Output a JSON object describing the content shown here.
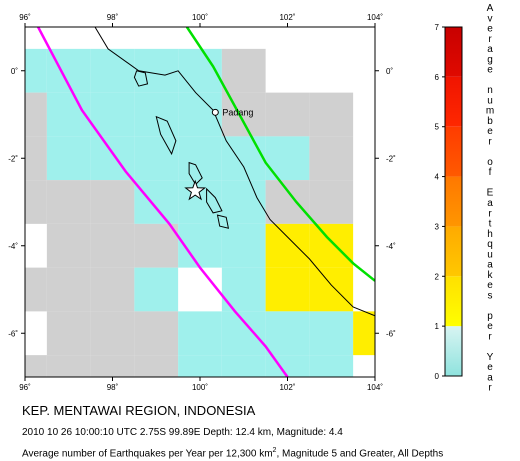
{
  "map": {
    "region_title": "KEP. MENTAWAI REGION, INDONESIA",
    "event_line": "2010 10 26 10:00:10 UTC 2.75S 99.89E Depth: 12.4 km, Magnitude: 4.4",
    "caption": {
      "prefix": "Average number of Earthquakes per Year per 12,300 km",
      "superscript": "2",
      "suffix": ", Magnitude 5 and Greater, All Depths"
    },
    "extent": {
      "lon_min": 96,
      "lon_max": 104,
      "lat_min": -7,
      "lat_max": 1
    },
    "lon_ticks": [
      {
        "value": 96,
        "label": "96˚"
      },
      {
        "value": 98,
        "label": "98˚"
      },
      {
        "value": 100,
        "label": "100˚"
      },
      {
        "value": 102,
        "label": "102˚"
      },
      {
        "value": 104,
        "label": "104˚"
      }
    ],
    "lat_ticks": [
      {
        "value": 0,
        "label": "0˚"
      },
      {
        "value": -2,
        "label": "-2˚"
      },
      {
        "value": -4,
        "label": "-4˚"
      },
      {
        "value": -6,
        "label": "-6˚"
      }
    ],
    "city": {
      "name": "Padang",
      "lon": 100.35,
      "lat": -0.95
    },
    "epicenter": {
      "lon": 99.89,
      "lat": -2.75
    },
    "colors": {
      "nodata": "#d0d0d0",
      "low": "#9ff0ec",
      "mid": "#ffee00",
      "trench": "#ff00ff",
      "fault": "#00e000",
      "coast": "#000000"
    },
    "grid_cells": [
      {
        "lon": 96,
        "lat": 0,
        "level": "low"
      },
      {
        "lon": 97,
        "lat": 0,
        "level": "low"
      },
      {
        "lon": 98,
        "lat": 0,
        "level": "low"
      },
      {
        "lon": 99,
        "lat": 0,
        "level": "low"
      },
      {
        "lon": 100,
        "lat": 0,
        "level": "low"
      },
      {
        "lon": 101,
        "lat": 0,
        "level": "nodata"
      },
      {
        "lon": 96,
        "lat": -1,
        "level": "nodata"
      },
      {
        "lon": 97,
        "lat": -1,
        "level": "low"
      },
      {
        "lon": 98,
        "lat": -1,
        "level": "low"
      },
      {
        "lon": 99,
        "lat": -1,
        "level": "low"
      },
      {
        "lon": 100,
        "lat": -1,
        "level": "low"
      },
      {
        "lon": 101,
        "lat": -1,
        "level": "nodata"
      },
      {
        "lon": 102,
        "lat": -1,
        "level": "nodata"
      },
      {
        "lon": 103,
        "lat": -1,
        "level": "nodata"
      },
      {
        "lon": 96,
        "lat": -2,
        "level": "nodata"
      },
      {
        "lon": 97,
        "lat": -2,
        "level": "low"
      },
      {
        "lon": 98,
        "lat": -2,
        "level": "low"
      },
      {
        "lon": 99,
        "lat": -2,
        "level": "low"
      },
      {
        "lon": 100,
        "lat": -2,
        "level": "low"
      },
      {
        "lon": 101,
        "lat": -2,
        "level": "low"
      },
      {
        "lon": 102,
        "lat": -2,
        "level": "low"
      },
      {
        "lon": 103,
        "lat": -2,
        "level": "nodata"
      },
      {
        "lon": 96,
        "lat": -3,
        "level": "nodata"
      },
      {
        "lon": 97,
        "lat": -3,
        "level": "nodata"
      },
      {
        "lon": 98,
        "lat": -3,
        "level": "nodata"
      },
      {
        "lon": 99,
        "lat": -3,
        "level": "low"
      },
      {
        "lon": 100,
        "lat": -3,
        "level": "low"
      },
      {
        "lon": 101,
        "lat": -3,
        "level": "low"
      },
      {
        "lon": 102,
        "lat": -3,
        "level": "nodata"
      },
      {
        "lon": 103,
        "lat": -3,
        "level": "nodata"
      },
      {
        "lon": 97,
        "lat": -4,
        "level": "nodata"
      },
      {
        "lon": 98,
        "lat": -4,
        "level": "nodata"
      },
      {
        "lon": 99,
        "lat": -4,
        "level": "nodata"
      },
      {
        "lon": 100,
        "lat": -4,
        "level": "low"
      },
      {
        "lon": 101,
        "lat": -4,
        "level": "low"
      },
      {
        "lon": 102,
        "lat": -4,
        "level": "mid"
      },
      {
        "lon": 103,
        "lat": -4,
        "level": "mid"
      },
      {
        "lon": 96,
        "lat": -5,
        "level": "nodata"
      },
      {
        "lon": 97,
        "lat": -5,
        "level": "nodata"
      },
      {
        "lon": 98,
        "lat": -5,
        "level": "nodata"
      },
      {
        "lon": 99,
        "lat": -5,
        "level": "low"
      },
      {
        "lon": 101,
        "lat": -5,
        "level": "low"
      },
      {
        "lon": 102,
        "lat": -5,
        "level": "mid"
      },
      {
        "lon": 103,
        "lat": -5,
        "level": "mid"
      },
      {
        "lon": 97,
        "lat": -6,
        "level": "nodata"
      },
      {
        "lon": 98,
        "lat": -6,
        "level": "nodata"
      },
      {
        "lon": 99,
        "lat": -6,
        "level": "nodata"
      },
      {
        "lon": 100,
        "lat": -6,
        "level": "low"
      },
      {
        "lon": 101,
        "lat": -6,
        "level": "low"
      },
      {
        "lon": 102,
        "lat": -6,
        "level": "low"
      },
      {
        "lon": 103,
        "lat": -6,
        "level": "low"
      },
      {
        "lon": 104,
        "lat": -6,
        "level": "mid"
      },
      {
        "lon": 96,
        "lat": -7,
        "level": "nodata"
      },
      {
        "lon": 97,
        "lat": -7,
        "level": "nodata"
      },
      {
        "lon": 98,
        "lat": -7,
        "level": "nodata"
      },
      {
        "lon": 99,
        "lat": -7,
        "level": "nodata"
      },
      {
        "lon": 100,
        "lat": -7,
        "level": "low"
      },
      {
        "lon": 101,
        "lat": -7,
        "level": "low"
      },
      {
        "lon": 102,
        "lat": -7,
        "level": "low"
      },
      {
        "lon": 103,
        "lat": -7,
        "level": "low"
      }
    ],
    "trench_line": [
      [
        96.3,
        1.0
      ],
      [
        97.3,
        -0.9
      ],
      [
        98.3,
        -2.3
      ],
      [
        99.3,
        -3.5
      ],
      [
        100.0,
        -4.5
      ],
      [
        100.8,
        -5.5
      ],
      [
        101.5,
        -6.3
      ],
      [
        102.0,
        -7.0
      ]
    ],
    "fault_line": [
      [
        99.7,
        1.0
      ],
      [
        100.3,
        0.1
      ],
      [
        100.9,
        -1.0
      ],
      [
        101.5,
        -2.1
      ],
      [
        102.2,
        -3.0
      ],
      [
        102.9,
        -3.8
      ],
      [
        103.5,
        -4.4
      ],
      [
        104.0,
        -4.8
      ]
    ],
    "coastline": [
      [
        97.6,
        1.0
      ],
      [
        97.9,
        0.5
      ],
      [
        98.6,
        0.0
      ],
      [
        99.2,
        -0.1
      ],
      [
        99.5,
        0.0
      ],
      [
        99.9,
        -0.5
      ],
      [
        100.3,
        -0.9
      ],
      [
        100.6,
        -1.6
      ],
      [
        101.0,
        -2.2
      ],
      [
        101.3,
        -2.9
      ],
      [
        101.6,
        -3.4
      ],
      [
        102.0,
        -3.8
      ],
      [
        102.5,
        -4.3
      ],
      [
        103.0,
        -4.9
      ],
      [
        103.5,
        -5.4
      ],
      [
        104.0,
        -5.6
      ]
    ],
    "islands": [
      [
        [
          99.0,
          -1.05
        ],
        [
          99.25,
          -1.15
        ],
        [
          99.45,
          -1.6
        ],
        [
          99.35,
          -1.9
        ],
        [
          99.1,
          -1.45
        ]
      ],
      [
        [
          98.55,
          0.0
        ],
        [
          98.75,
          -0.05
        ],
        [
          98.8,
          -0.3
        ],
        [
          98.6,
          -0.35
        ],
        [
          98.5,
          -0.15
        ]
      ],
      [
        [
          99.75,
          -2.1
        ],
        [
          99.9,
          -2.15
        ],
        [
          100.05,
          -2.45
        ],
        [
          99.9,
          -2.6
        ],
        [
          99.75,
          -2.35
        ]
      ],
      [
        [
          100.15,
          -2.7
        ],
        [
          100.35,
          -2.9
        ],
        [
          100.5,
          -3.2
        ],
        [
          100.3,
          -3.25
        ],
        [
          100.15,
          -3.0
        ]
      ],
      [
        [
          100.4,
          -3.3
        ],
        [
          100.6,
          -3.35
        ],
        [
          100.65,
          -3.6
        ],
        [
          100.45,
          -3.55
        ]
      ]
    ],
    "scale": {
      "title_letters": [
        "A",
        "v",
        "e",
        "r",
        "a",
        "g",
        "e",
        "",
        "n",
        "u",
        "m",
        "b",
        "e",
        "r",
        "",
        "o",
        "f",
        "",
        "E",
        "a",
        "r",
        "t",
        "h",
        "q",
        "u",
        "a",
        "k",
        "e",
        "s",
        "",
        "p",
        "e",
        "r",
        "",
        "Y",
        "e",
        "a",
        "r"
      ],
      "tick_labels": [
        "0",
        "1",
        "2",
        "3",
        "4",
        "5",
        "6",
        "7"
      ],
      "segments": [
        {
          "from": 0,
          "to": 1,
          "color_bottom": "#8fe3de",
          "color_top": "#d8f4f2"
        },
        {
          "from": 1,
          "to": 2,
          "color_bottom": "#ffff00",
          "color_top": "#ffe000"
        },
        {
          "from": 2,
          "to": 3,
          "color_bottom": "#ffc800",
          "color_top": "#ffaa00"
        },
        {
          "from": 3,
          "to": 4,
          "color_bottom": "#ff9600",
          "color_top": "#ff7800"
        },
        {
          "from": 4,
          "to": 5,
          "color_bottom": "#ff5a00",
          "color_top": "#ff3c00"
        },
        {
          "from": 5,
          "to": 6,
          "color_bottom": "#ff2800",
          "color_top": "#f01400"
        },
        {
          "from": 6,
          "to": 7,
          "color_bottom": "#e00a00",
          "color_top": "#c80000"
        }
      ]
    }
  }
}
